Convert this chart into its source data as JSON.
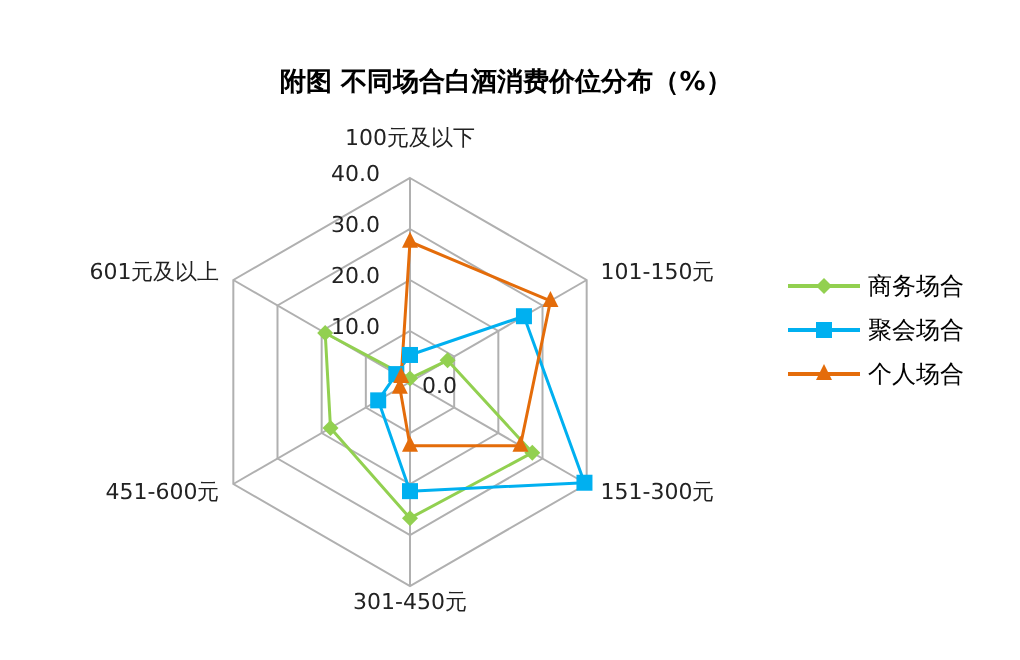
{
  "chart_data": {
    "type": "radar",
    "title": "附图 不同场合白酒消费价位分布（%）",
    "categories": [
      "100元及以下",
      "101-150元",
      "151-300元",
      "301-450元",
      "451-600元",
      "601元及以上"
    ],
    "series": [
      {
        "name": "商务场合",
        "color": "#92d050",
        "values": [
          0.7,
          8.5,
          27.7,
          26.7,
          18,
          19.2
        ],
        "marker": "diamond"
      },
      {
        "name": "聚会场合",
        "color": "#00b0f0",
        "values": [
          5.3,
          25.8,
          39.5,
          21.4,
          7.2,
          3.1
        ],
        "marker": "square"
      },
      {
        "name": "个人场合",
        "color": "#e46c0a",
        "values": [
          27.5,
          31.8,
          25,
          12.5,
          2.3,
          2
        ],
        "marker": "triangle"
      }
    ],
    "ylim": [
      0,
      40
    ],
    "yticks": [
      {
        "value": 0,
        "label": "0.0"
      },
      {
        "value": 10,
        "label": "10.0"
      },
      {
        "value": 20,
        "label": "20.0"
      },
      {
        "value": 30,
        "label": "30.0"
      },
      {
        "value": 40,
        "label": "40.0"
      }
    ],
    "grid": true,
    "legend": "right"
  }
}
